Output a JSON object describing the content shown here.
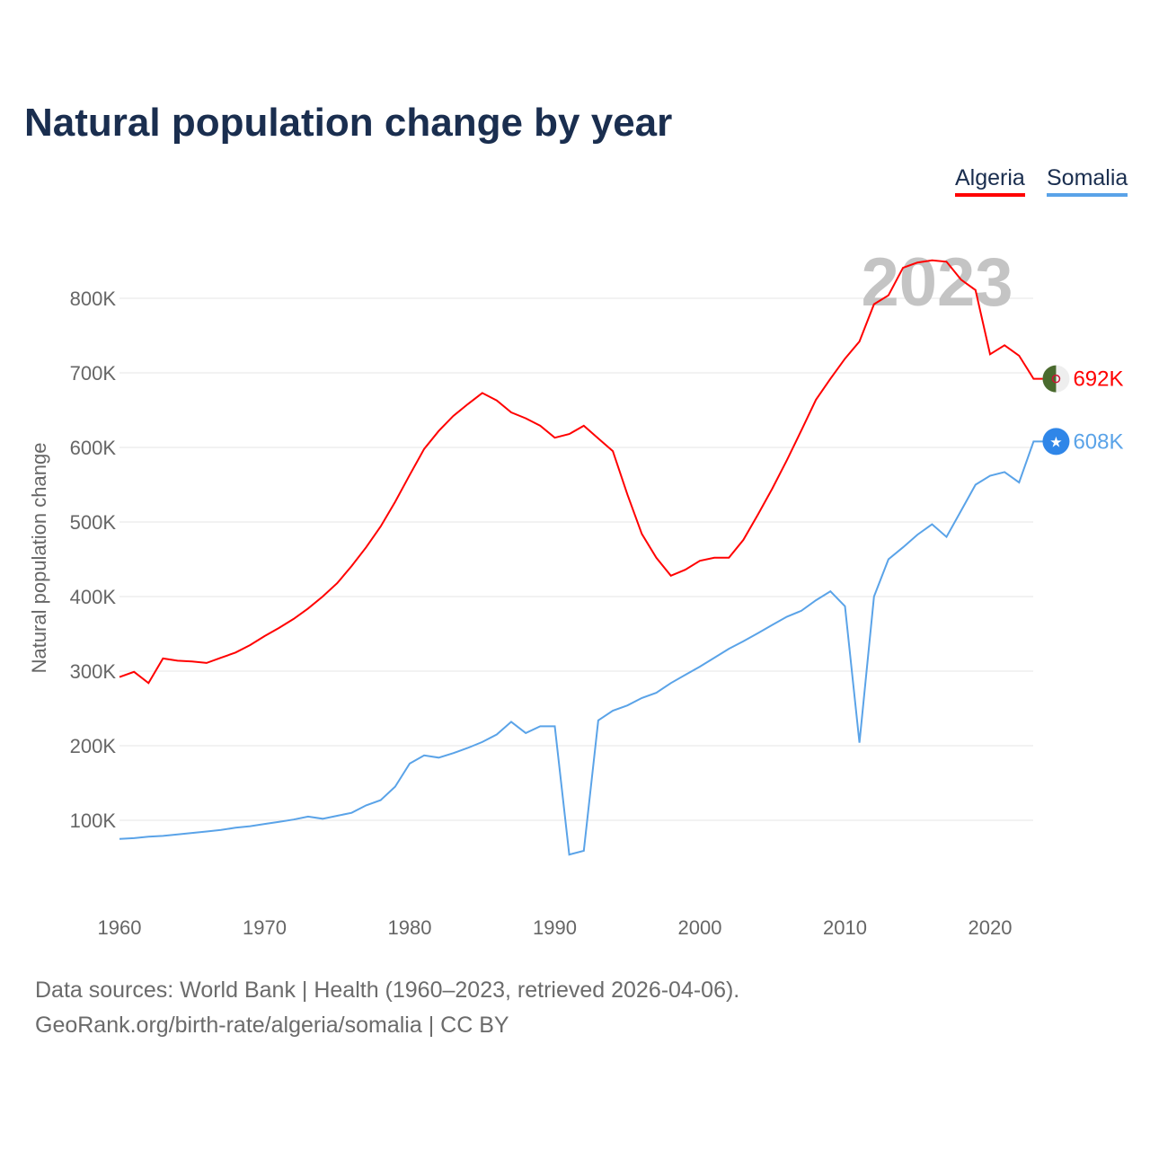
{
  "title": "Natural population change by year",
  "footer": {
    "line1": "Data sources: World Bank | Health (1960–2023, retrieved 2026-04-06).",
    "line2": "GeoRank.org/birth-rate/algeria/somalia | CC BY"
  },
  "chart_data": {
    "type": "line",
    "title": "Natural population change by year",
    "xlabel": "",
    "ylabel": "Natural population change",
    "year_watermark": "2023",
    "xlim": [
      1960,
      2023
    ],
    "ylim": [
      0,
      900000
    ],
    "x_ticks": [
      1960,
      1970,
      1980,
      1990,
      2000,
      2010,
      2020
    ],
    "y_ticks": [
      {
        "v": 100000,
        "label": "100K"
      },
      {
        "v": 200000,
        "label": "200K"
      },
      {
        "v": 300000,
        "label": "300K"
      },
      {
        "v": 400000,
        "label": "400K"
      },
      {
        "v": 500000,
        "label": "500K"
      },
      {
        "v": 600000,
        "label": "600K"
      },
      {
        "v": 700000,
        "label": "700K"
      },
      {
        "v": 800000,
        "label": "800K"
      }
    ],
    "grid": true,
    "legend_position": "top-right",
    "x": [
      1960,
      1961,
      1962,
      1963,
      1964,
      1965,
      1966,
      1967,
      1968,
      1969,
      1970,
      1971,
      1972,
      1973,
      1974,
      1975,
      1976,
      1977,
      1978,
      1979,
      1980,
      1981,
      1982,
      1983,
      1984,
      1985,
      1986,
      1987,
      1988,
      1989,
      1990,
      1991,
      1992,
      1993,
      1994,
      1995,
      1996,
      1997,
      1998,
      1999,
      2000,
      2001,
      2002,
      2003,
      2004,
      2005,
      2006,
      2007,
      2008,
      2009,
      2010,
      2011,
      2012,
      2013,
      2014,
      2015,
      2016,
      2017,
      2018,
      2019,
      2020,
      2021,
      2022,
      2023
    ],
    "series": [
      {
        "name": "Algeria",
        "color": "#ff0000",
        "end_label": "692K",
        "icon": "algeria-flag",
        "values": [
          292000,
          299000,
          284000,
          317000,
          314000,
          313000,
          311000,
          318000,
          325000,
          335000,
          347000,
          358000,
          370000,
          384000,
          400000,
          418000,
          441000,
          466000,
          494000,
          527000,
          563000,
          598000,
          622000,
          642000,
          658000,
          673000,
          663000,
          647000,
          639000,
          629000,
          613000,
          618000,
          629000,
          612000,
          595000,
          537000,
          484000,
          452000,
          428000,
          436000,
          448000,
          452000,
          452000,
          476000,
          510000,
          545000,
          583000,
          623000,
          664000,
          692000,
          719000,
          742000,
          792000,
          804000,
          841000,
          848000,
          851000,
          849000,
          825000,
          811000,
          725000,
          737000,
          723000,
          692000
        ]
      },
      {
        "name": "Somalia",
        "color": "#5aa3e8",
        "end_label": "608K",
        "icon": "somalia-flag",
        "values": [
          75000,
          76000,
          78000,
          79000,
          81000,
          83000,
          85000,
          87000,
          90000,
          92000,
          95000,
          98000,
          101000,
          105000,
          102000,
          106000,
          110000,
          120000,
          127000,
          145000,
          176000,
          187000,
          184000,
          190000,
          197000,
          205000,
          215000,
          232000,
          217000,
          226000,
          226000,
          54000,
          59000,
          234000,
          247000,
          254000,
          264000,
          271000,
          284000,
          295000,
          306000,
          318000,
          330000,
          340000,
          351000,
          362000,
          373000,
          381000,
          395000,
          407000,
          387000,
          204000,
          400000,
          450000,
          466000,
          483000,
          497000,
          480000,
          515000,
          550000,
          562000,
          567000,
          553000,
          608000
        ]
      }
    ]
  }
}
